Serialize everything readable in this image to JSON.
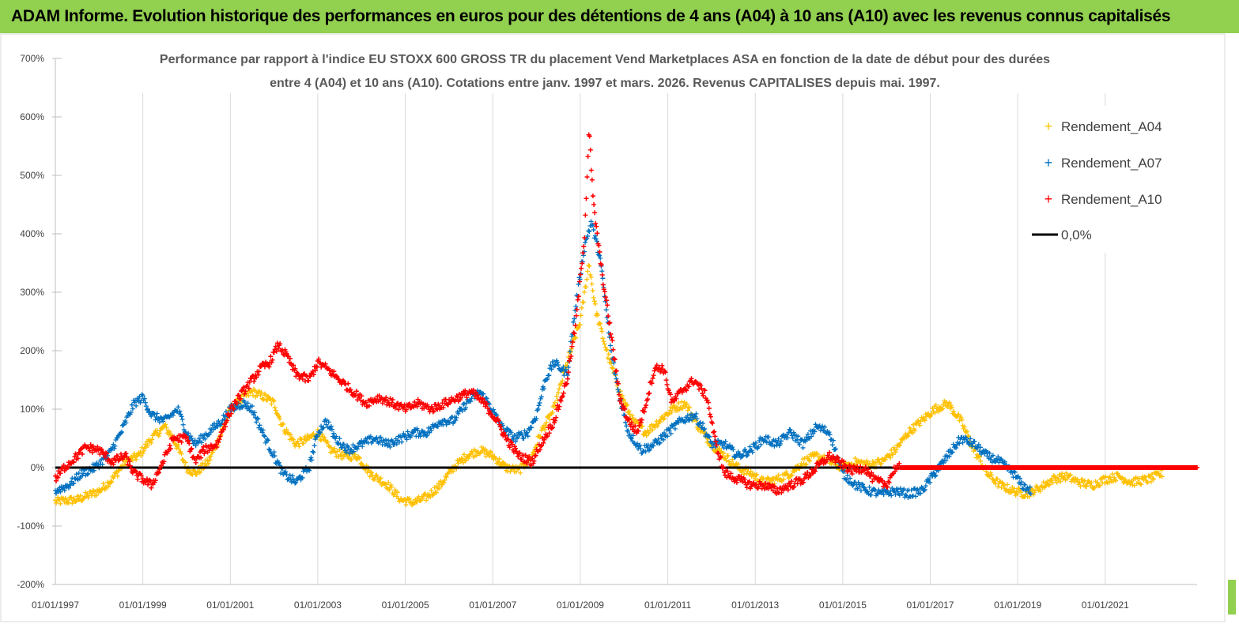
{
  "banner": {
    "title": "ADAM Informe. Evolution historique des performances en euros pour des détentions de 4 ans (A04) à 10 ans (A10) avec les revenus connus capitalisés"
  },
  "chart_data": {
    "type": "scatter",
    "title_lines": [
      "Performance par rapport à l'indice EU STOXX 600 GROSS TR  du placement Vend Marketplaces ASA en fonction de la date de début pour des durées",
      "entre 4 (A04) et 10 ans (A10). Cotations entre janv. 1997 et mars. 2026. Revenus CAPITALISES depuis mai. 1997."
    ],
    "y_ticks": [
      "700%",
      "600%",
      "500%",
      "400%",
      "300%",
      "200%",
      "100%",
      "0%",
      "-100%",
      "-200%"
    ],
    "ylim": [
      -200,
      700
    ],
    "x_ticks": [
      "01/01/1997",
      "01/01/1999",
      "01/01/2001",
      "01/01/2003",
      "01/01/2005",
      "01/01/2007",
      "01/01/2009",
      "01/01/2011",
      "01/01/2013",
      "01/01/2015",
      "01/01/2017",
      "01/01/2019",
      "01/01/2021"
    ],
    "xlim": [
      1997.0,
      2023.1
    ],
    "grid": "vertical",
    "legend_position": "top-right",
    "legend": [
      {
        "label": "Rendement_A04",
        "marker": "+",
        "color": "#FFC000"
      },
      {
        "label": "Rendement_A07",
        "marker": "+",
        "color": "#0070C0"
      },
      {
        "label": "Rendement_A10",
        "marker": "+",
        "color": "#FF0000"
      },
      {
        "label": "0,0%",
        "marker": "line",
        "color": "#000000"
      }
    ],
    "series": [
      {
        "name": "Rendement_A04",
        "color": "#FFC000",
        "x_end": 2022.3,
        "points": [
          [
            1997.0,
            -58
          ],
          [
            1997.5,
            -55
          ],
          [
            1998.0,
            -40
          ],
          [
            1998.3,
            -20
          ],
          [
            1998.6,
            10
          ],
          [
            1998.9,
            20
          ],
          [
            1999.2,
            50
          ],
          [
            1999.5,
            70
          ],
          [
            1999.7,
            50
          ],
          [
            2000.0,
            0
          ],
          [
            2000.2,
            -10
          ],
          [
            2000.5,
            10
          ],
          [
            2000.8,
            60
          ],
          [
            2001.0,
            100
          ],
          [
            2001.3,
            120
          ],
          [
            2001.5,
            130
          ],
          [
            2001.8,
            120
          ],
          [
            2002.0,
            110
          ],
          [
            2002.2,
            70
          ],
          [
            2002.5,
            40
          ],
          [
            2002.8,
            50
          ],
          [
            2003.0,
            60
          ],
          [
            2003.3,
            30
          ],
          [
            2003.6,
            20
          ],
          [
            2003.9,
            20
          ],
          [
            2004.2,
            -10
          ],
          [
            2004.6,
            -30
          ],
          [
            2004.9,
            -55
          ],
          [
            2005.2,
            -60
          ],
          [
            2005.5,
            -50
          ],
          [
            2005.8,
            -30
          ],
          [
            2006.1,
            0
          ],
          [
            2006.4,
            20
          ],
          [
            2006.7,
            30
          ],
          [
            2007.0,
            20
          ],
          [
            2007.3,
            0
          ],
          [
            2007.6,
            -5
          ],
          [
            2007.9,
            20
          ],
          [
            2008.1,
            60
          ],
          [
            2008.4,
            100
          ],
          [
            2008.7,
            180
          ],
          [
            2009.0,
            250
          ],
          [
            2009.2,
            350
          ],
          [
            2009.35,
            270
          ],
          [
            2009.6,
            200
          ],
          [
            2009.9,
            130
          ],
          [
            2010.2,
            80
          ],
          [
            2010.5,
            60
          ],
          [
            2010.8,
            80
          ],
          [
            2011.1,
            100
          ],
          [
            2011.4,
            110
          ],
          [
            2011.7,
            70
          ],
          [
            2012.0,
            40
          ],
          [
            2012.3,
            20
          ],
          [
            2012.6,
            0
          ],
          [
            2012.9,
            -10
          ],
          [
            2013.2,
            -25
          ],
          [
            2013.5,
            -20
          ],
          [
            2013.8,
            -10
          ],
          [
            2014.1,
            10
          ],
          [
            2014.4,
            20
          ],
          [
            2014.7,
            10
          ],
          [
            2015.0,
            0
          ],
          [
            2015.3,
            10
          ],
          [
            2015.6,
            5
          ],
          [
            2015.9,
            10
          ],
          [
            2016.2,
            30
          ],
          [
            2016.5,
            60
          ],
          [
            2016.8,
            80
          ],
          [
            2017.1,
            100
          ],
          [
            2017.4,
            110
          ],
          [
            2017.7,
            80
          ],
          [
            2018.0,
            30
          ],
          [
            2018.3,
            -10
          ],
          [
            2018.6,
            -30
          ],
          [
            2018.9,
            -40
          ],
          [
            2019.2,
            -45
          ],
          [
            2019.5,
            -35
          ],
          [
            2019.8,
            -20
          ],
          [
            2020.1,
            -15
          ],
          [
            2020.4,
            -25
          ],
          [
            2020.7,
            -30
          ],
          [
            2021.0,
            -20
          ],
          [
            2021.3,
            -15
          ],
          [
            2021.6,
            -25
          ],
          [
            2022.0,
            -20
          ],
          [
            2022.3,
            -10
          ]
        ]
      },
      {
        "name": "Rendement_A07",
        "color": "#0070C0",
        "x_end": 2019.3,
        "points": [
          [
            1997.0,
            -40
          ],
          [
            1997.3,
            -30
          ],
          [
            1997.6,
            -10
          ],
          [
            1997.9,
            0
          ],
          [
            1998.2,
            20
          ],
          [
            1998.5,
            60
          ],
          [
            1998.8,
            110
          ],
          [
            1999.0,
            120
          ],
          [
            1999.2,
            90
          ],
          [
            1999.5,
            80
          ],
          [
            1999.8,
            100
          ],
          [
            2000.0,
            60
          ],
          [
            2000.2,
            40
          ],
          [
            2000.5,
            60
          ],
          [
            2000.8,
            80
          ],
          [
            2001.0,
            100
          ],
          [
            2001.3,
            110
          ],
          [
            2001.5,
            100
          ],
          [
            2001.8,
            50
          ],
          [
            2002.0,
            20
          ],
          [
            2002.2,
            -10
          ],
          [
            2002.5,
            -25
          ],
          [
            2002.8,
            0
          ],
          [
            2003.0,
            60
          ],
          [
            2003.2,
            80
          ],
          [
            2003.4,
            50
          ],
          [
            2003.7,
            30
          ],
          [
            2004.0,
            40
          ],
          [
            2004.3,
            50
          ],
          [
            2004.6,
            40
          ],
          [
            2004.9,
            50
          ],
          [
            2005.2,
            60
          ],
          [
            2005.5,
            60
          ],
          [
            2005.8,
            80
          ],
          [
            2006.1,
            80
          ],
          [
            2006.4,
            110
          ],
          [
            2006.7,
            130
          ],
          [
            2006.9,
            110
          ],
          [
            2007.2,
            70
          ],
          [
            2007.5,
            50
          ],
          [
            2007.8,
            60
          ],
          [
            2008.0,
            90
          ],
          [
            2008.2,
            150
          ],
          [
            2008.4,
            180
          ],
          [
            2008.7,
            160
          ],
          [
            2008.9,
            280
          ],
          [
            2009.1,
            380
          ],
          [
            2009.25,
            420
          ],
          [
            2009.45,
            360
          ],
          [
            2009.7,
            200
          ],
          [
            2009.9,
            120
          ],
          [
            2010.1,
            60
          ],
          [
            2010.4,
            30
          ],
          [
            2010.7,
            40
          ],
          [
            2011.0,
            60
          ],
          [
            2011.3,
            80
          ],
          [
            2011.6,
            90
          ],
          [
            2011.8,
            70
          ],
          [
            2012.0,
            40
          ],
          [
            2012.3,
            40
          ],
          [
            2012.6,
            20
          ],
          [
            2012.9,
            30
          ],
          [
            2013.2,
            50
          ],
          [
            2013.5,
            40
          ],
          [
            2013.8,
            60
          ],
          [
            2014.1,
            40
          ],
          [
            2014.4,
            70
          ],
          [
            2014.7,
            60
          ],
          [
            2015.0,
            -10
          ],
          [
            2015.3,
            -30
          ],
          [
            2015.6,
            -40
          ],
          [
            2015.9,
            -45
          ],
          [
            2016.2,
            -40
          ],
          [
            2016.5,
            -45
          ],
          [
            2016.8,
            -40
          ],
          [
            2017.1,
            -10
          ],
          [
            2017.4,
            20
          ],
          [
            2017.7,
            50
          ],
          [
            2018.0,
            40
          ],
          [
            2018.3,
            20
          ],
          [
            2018.6,
            10
          ],
          [
            2018.9,
            -10
          ],
          [
            2019.1,
            -30
          ],
          [
            2019.3,
            -40
          ]
        ]
      },
      {
        "name": "Rendement_A10",
        "color": "#FF0000",
        "x_end": 2023.1,
        "points": [
          [
            1997.0,
            -20
          ],
          [
            1997.2,
            0
          ],
          [
            1997.5,
            20
          ],
          [
            1997.7,
            35
          ],
          [
            1998.0,
            30
          ],
          [
            1998.3,
            10
          ],
          [
            1998.6,
            20
          ],
          [
            1998.8,
            -10
          ],
          [
            1999.0,
            -20
          ],
          [
            1999.2,
            -30
          ],
          [
            1999.4,
            0
          ],
          [
            1999.7,
            50
          ],
          [
            2000.0,
            50
          ],
          [
            2000.2,
            10
          ],
          [
            2000.4,
            30
          ],
          [
            2000.7,
            40
          ],
          [
            2000.9,
            80
          ],
          [
            2001.1,
            110
          ],
          [
            2001.3,
            130
          ],
          [
            2001.5,
            150
          ],
          [
            2001.7,
            170
          ],
          [
            2001.9,
            180
          ],
          [
            2002.1,
            210
          ],
          [
            2002.3,
            190
          ],
          [
            2002.5,
            160
          ],
          [
            2002.8,
            150
          ],
          [
            2003.0,
            180
          ],
          [
            2003.2,
            170
          ],
          [
            2003.5,
            150
          ],
          [
            2003.8,
            130
          ],
          [
            2004.1,
            110
          ],
          [
            2004.4,
            120
          ],
          [
            2004.7,
            110
          ],
          [
            2005.0,
            100
          ],
          [
            2005.3,
            110
          ],
          [
            2005.6,
            100
          ],
          [
            2005.9,
            110
          ],
          [
            2006.2,
            120
          ],
          [
            2006.5,
            130
          ],
          [
            2006.8,
            110
          ],
          [
            2007.1,
            80
          ],
          [
            2007.3,
            50
          ],
          [
            2007.6,
            20
          ],
          [
            2007.9,
            10
          ],
          [
            2008.1,
            40
          ],
          [
            2008.4,
            80
          ],
          [
            2008.7,
            150
          ],
          [
            2008.9,
            250
          ],
          [
            2009.1,
            400
          ],
          [
            2009.2,
            580
          ],
          [
            2009.3,
            450
          ],
          [
            2009.5,
            330
          ],
          [
            2009.7,
            230
          ],
          [
            2009.9,
            120
          ],
          [
            2010.1,
            80
          ],
          [
            2010.3,
            60
          ],
          [
            2010.5,
            110
          ],
          [
            2010.7,
            170
          ],
          [
            2010.9,
            170
          ],
          [
            2011.1,
            110
          ],
          [
            2011.3,
            130
          ],
          [
            2011.6,
            150
          ],
          [
            2011.9,
            120
          ],
          [
            2012.1,
            40
          ],
          [
            2012.3,
            -10
          ],
          [
            2012.6,
            -20
          ],
          [
            2012.9,
            -30
          ],
          [
            2013.2,
            -30
          ],
          [
            2013.5,
            -40
          ],
          [
            2013.8,
            -30
          ],
          [
            2014.1,
            -20
          ],
          [
            2014.4,
            0
          ],
          [
            2014.7,
            20
          ],
          [
            2014.9,
            10
          ],
          [
            2015.2,
            -5
          ],
          [
            2015.5,
            0
          ],
          [
            2015.7,
            -20
          ],
          [
            2016.0,
            -30
          ],
          [
            2016.2,
            0
          ],
          [
            2016.5,
            0
          ],
          [
            2017.0,
            0
          ],
          [
            2018.0,
            0
          ],
          [
            2019.0,
            0
          ],
          [
            2020.0,
            0
          ],
          [
            2021.0,
            0
          ],
          [
            2022.0,
            0
          ],
          [
            2023.1,
            0
          ]
        ]
      }
    ],
    "zero_line": {
      "label": "0,0%",
      "value": 0,
      "color": "#000000"
    }
  }
}
